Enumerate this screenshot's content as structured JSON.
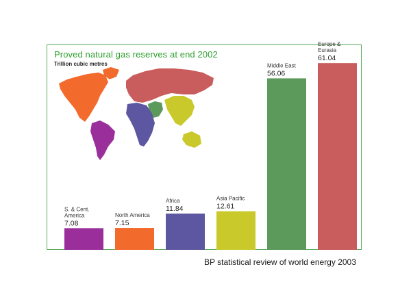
{
  "chart_data": {
    "type": "bar",
    "title": "Proved natural gas reserves at end 2002",
    "subtitle": "Trillion cubic metres",
    "categories": [
      "S. & Cent. America",
      "North America",
      "Africa",
      "Asia Pacific",
      "Middle East",
      "Europe & Eurasia"
    ],
    "category_lines": [
      [
        "S. & Cent.",
        "America"
      ],
      [
        "North America"
      ],
      [
        "Africa"
      ],
      [
        "Asia Pacific"
      ],
      [
        "Middle East"
      ],
      [
        "Europe &",
        "Eurasia"
      ]
    ],
    "values": [
      7.08,
      7.15,
      11.84,
      12.61,
      56.06,
      61.04
    ],
    "value_labels": [
      "7.08",
      "7.15",
      "11.84",
      "12.61",
      "56.06",
      "61.04"
    ],
    "colors": [
      "#9a2f9c",
      "#f26a2c",
      "#5d56a0",
      "#c9c92c",
      "#5c9a5c",
      "#c95c5c"
    ],
    "ylim": [
      0,
      66
    ],
    "grid": false,
    "legend": "none"
  },
  "map": {
    "regions": [
      "North America",
      "S. & Cent. America",
      "Europe & Eurasia",
      "Middle East",
      "Africa",
      "Asia Pacific"
    ],
    "colors": {
      "North America": "#f26a2c",
      "S. & Cent. America": "#9a2f9c",
      "Europe & Eurasia": "#c95c5c",
      "Middle East": "#5c9a5c",
      "Africa": "#5d56a0",
      "Asia Pacific": "#c9c92c"
    }
  },
  "footer": {
    "source": "BP statistical review of world energy 2003"
  }
}
